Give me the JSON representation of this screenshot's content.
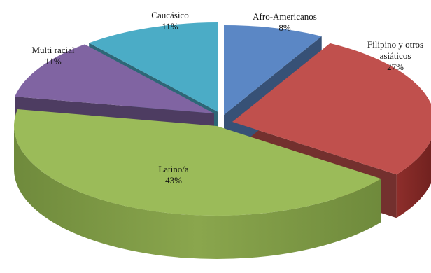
{
  "chart_data": {
    "type": "pie",
    "title": "",
    "categories": [
      "Afro-Americanos",
      "Filipino y otros asiáticos",
      "Latino/a",
      "Multi racial",
      "Caucásico"
    ],
    "values": [
      8,
      27,
      43,
      11,
      11
    ],
    "value_labels": [
      "8%",
      "27%",
      "43%",
      "11%",
      "11%"
    ],
    "label_lines": [
      [
        "Afro-Americanos"
      ],
      [
        "Filipino y otros",
        "asiáticos"
      ],
      [
        "Latino/a"
      ],
      [
        "Multi racial"
      ],
      [
        "Caucásico"
      ]
    ],
    "colors": [
      "#5b87c5",
      "#c0504d",
      "#9bbb59",
      "#8064a2",
      "#4bacc6"
    ],
    "style": "3d-exploded",
    "legend": "none"
  }
}
